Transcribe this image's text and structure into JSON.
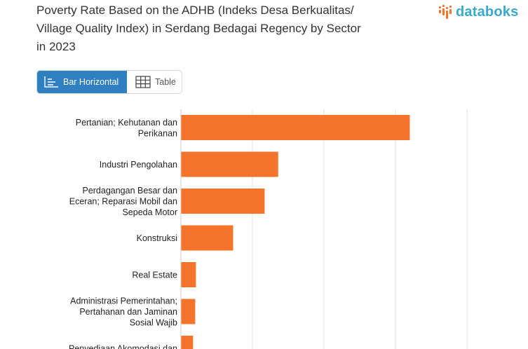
{
  "header": {
    "title_lines": [
      "Poverty Rate Based on the ADHB (Indeks Desa Berkualitas/",
      "Village Quality Index) in Serdang Bedagai Regency by Sector",
      "in 2023"
    ],
    "logo_text": "databoks"
  },
  "view_toggle": {
    "bar_label": "Bar Horizontal",
    "table_label": "Table",
    "active": "bar"
  },
  "colors": {
    "bar": "#f4742b",
    "accent": "#2f7fc1",
    "grid": "#e3e3e3",
    "logo": "#3aa9c9"
  },
  "icons": {
    "bar_toggle": "bar-chart-icon",
    "table_toggle": "table-icon",
    "logo_mark": "databoks-logo-icon"
  },
  "chart_data": {
    "type": "bar",
    "orientation": "horizontal",
    "categories": [
      [
        "Pertanian; Kehutanan dan",
        "Perikanan"
      ],
      [
        "Industri Pengolahan"
      ],
      [
        "Perdagangan Besar dan",
        "Eceran; Reparasi Mobil dan",
        "Sepeda Motor"
      ],
      [
        "Konstruksi"
      ],
      [
        "Real Estate"
      ],
      [
        "Administrasi Pemerintahan;",
        "Pertahanan dan Jaminan",
        "Sosial Wajib"
      ],
      [
        "Penyediaan Akomodasi dan"
      ]
    ],
    "values": [
      32,
      13.6,
      11.7,
      7.3,
      2.1,
      2,
      1.7
    ],
    "xlim": [
      0,
      40
    ],
    "grid_ticks": [
      0,
      10,
      20,
      30,
      40
    ],
    "grid": true
  }
}
